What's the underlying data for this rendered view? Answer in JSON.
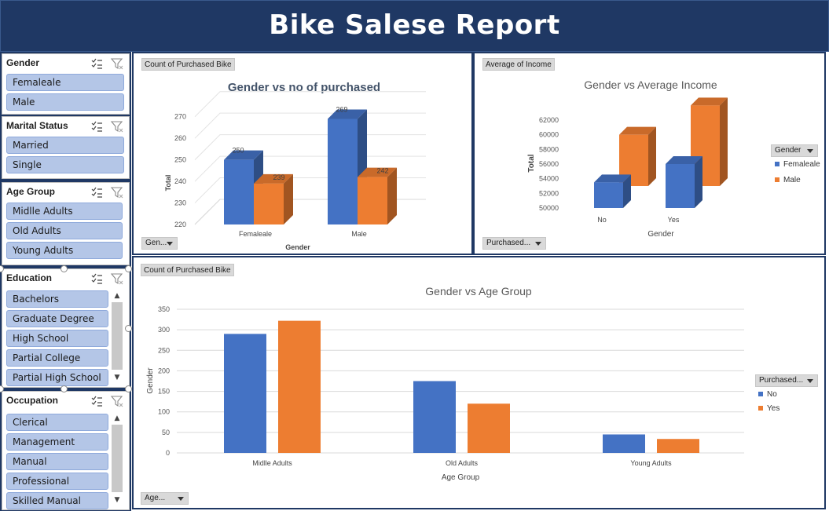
{
  "report": {
    "title": "Bike Salese Report"
  },
  "colors": {
    "banner": "#1f3864",
    "blue": "#4472c4",
    "orange": "#ed7d31",
    "slicer_item": "#b4c6e7"
  },
  "slicers": {
    "gender": {
      "title": "Gender",
      "items": [
        "Femaleale",
        "Male"
      ]
    },
    "marital": {
      "title": "Marital Status",
      "items": [
        "Married",
        "Single"
      ]
    },
    "age": {
      "title": "Age Group",
      "items": [
        "Midlle Adults",
        "Old Adults",
        "Young Adults"
      ]
    },
    "education": {
      "title": "Education",
      "items": [
        "Bachelors",
        "Graduate Degree",
        "High School",
        "Partial College",
        "Partial High School"
      ]
    },
    "occupation": {
      "title": "Occupation",
      "items": [
        "Clerical",
        "Management",
        "Manual",
        "Professional",
        "Skilled Manual"
      ]
    }
  },
  "charts": {
    "purchased": {
      "field_button": "Count of Purchased Bike",
      "axis_button": "Gen...",
      "title": "Gender vs no of purchased",
      "xlabel": "Gender",
      "ylabel": "Total",
      "ticks": [
        "220",
        "230",
        "240",
        "250",
        "260",
        "270"
      ]
    },
    "income": {
      "field_button": "Average of Income",
      "axis_button": "Purchased...",
      "legend_button": "Gender",
      "title": "Gender vs Average Income",
      "xlabel": "Gender",
      "ylabel": "Total",
      "ticks": [
        "50000",
        "52000",
        "54000",
        "56000",
        "58000",
        "60000",
        "62000"
      ]
    },
    "age": {
      "field_button": "Count of Purchased Bike",
      "axis_button": "Age...",
      "legend_button": "Purchased...",
      "title": "Gender vs Age Group",
      "xlabel": "Age Group",
      "ylabel": "Gender",
      "ticks": [
        "0",
        "50",
        "100",
        "150",
        "200",
        "250",
        "300",
        "350"
      ]
    }
  },
  "chart_data": [
    {
      "type": "bar",
      "title": "Gender vs no of purchased",
      "xlabel": "Gender",
      "ylabel": "Total",
      "categories": [
        "Femaleale",
        "Male"
      ],
      "series": [
        {
          "values": [
            250,
            269
          ]
        },
        {
          "values": [
            239,
            242
          ]
        }
      ],
      "ylim": [
        220,
        275
      ],
      "data_labels": [
        "250",
        "239",
        "269",
        "242"
      ],
      "grid": true
    },
    {
      "type": "bar",
      "title": "Gender vs Average Income",
      "xlabel": "Gender",
      "ylabel": "Total",
      "categories": [
        "No",
        "Yes"
      ],
      "series": [
        {
          "name": "Femaleale",
          "values": [
            53500,
            56000
          ]
        },
        {
          "name": "Male",
          "values": [
            57000,
            61000
          ]
        }
      ],
      "ylim": [
        50000,
        62000
      ],
      "legend": "right",
      "grid": false
    },
    {
      "type": "bar",
      "title": "Gender vs Age Group",
      "xlabel": "Age Group",
      "ylabel": "Gender",
      "categories": [
        "Midlle Adults",
        "Old Adults",
        "Young Adults"
      ],
      "series": [
        {
          "name": "No",
          "values": [
            290,
            175,
            45
          ]
        },
        {
          "name": "Yes",
          "values": [
            322,
            120,
            34
          ]
        }
      ],
      "ylim": [
        0,
        350
      ],
      "legend": "right",
      "grid": true
    }
  ]
}
